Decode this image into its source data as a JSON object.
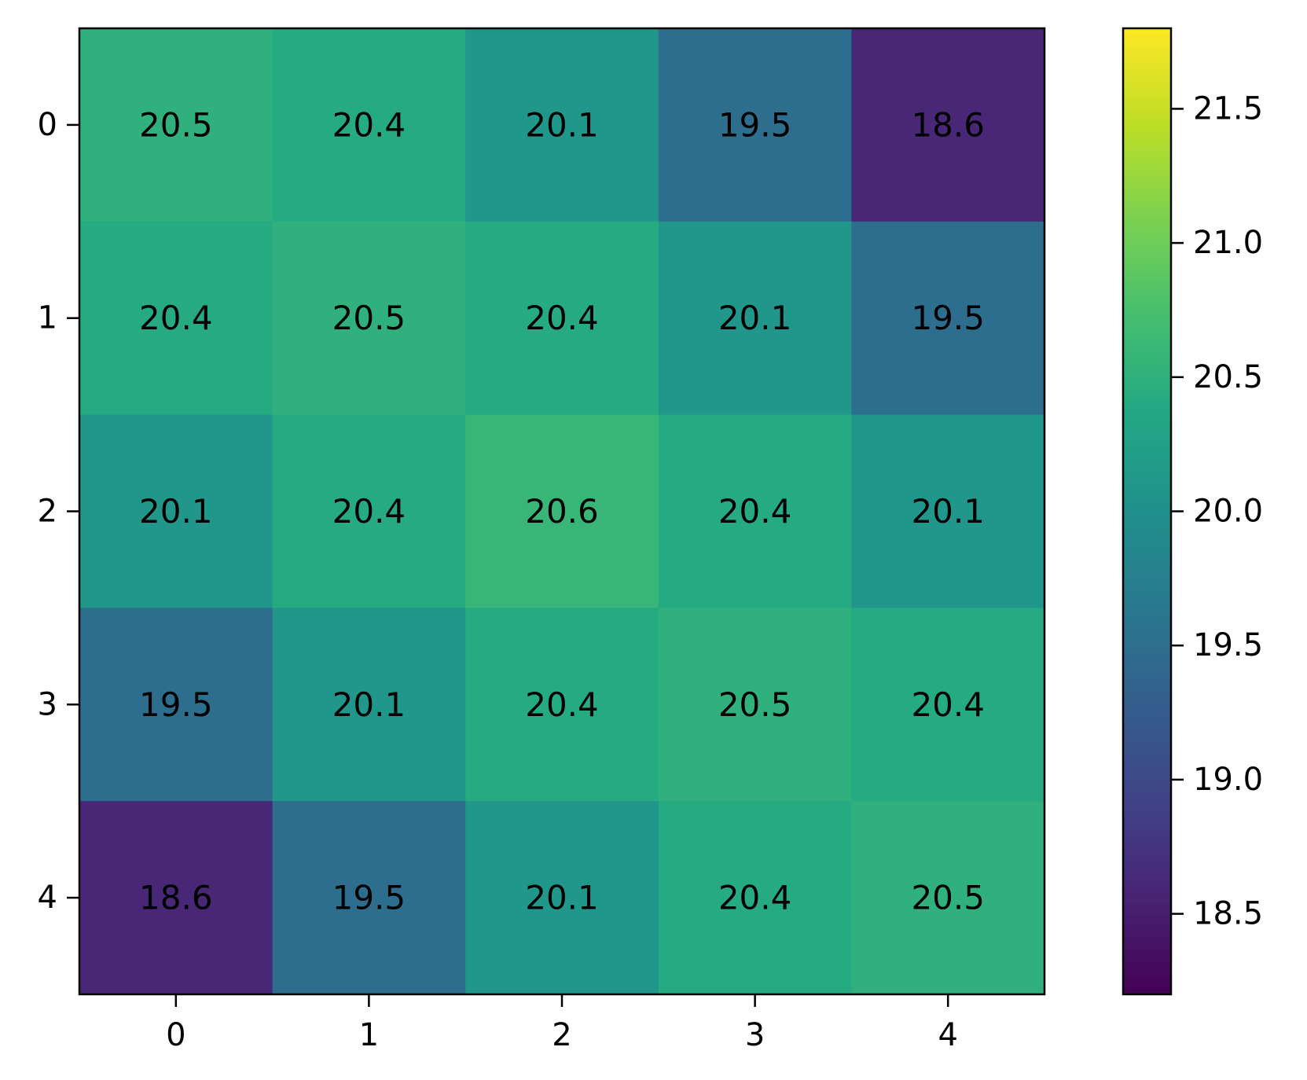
{
  "chart_data": {
    "type": "heatmap",
    "title": "",
    "xlabel": "",
    "ylabel": "",
    "x_categories": [
      "0",
      "1",
      "2",
      "3",
      "4"
    ],
    "y_categories": [
      "0",
      "1",
      "2",
      "3",
      "4"
    ],
    "values": [
      [
        20.5,
        20.4,
        20.1,
        19.5,
        18.6
      ],
      [
        20.4,
        20.5,
        20.4,
        20.1,
        19.5
      ],
      [
        20.1,
        20.4,
        20.6,
        20.4,
        20.1
      ],
      [
        19.5,
        20.1,
        20.4,
        20.5,
        20.4
      ],
      [
        18.6,
        19.5,
        20.1,
        20.4,
        20.5
      ]
    ],
    "colormap": "viridis",
    "color_range": [
      18.2,
      21.8
    ],
    "colorbar": {
      "ticks": [
        18.5,
        19.0,
        19.5,
        20.0,
        20.5,
        21.0,
        21.5
      ],
      "tick_labels": [
        "18.5",
        "19.0",
        "19.5",
        "20.0",
        "20.5",
        "21.0",
        "21.5"
      ],
      "placement": "right"
    },
    "annotations": "cell values",
    "grid": false,
    "legend": false
  }
}
